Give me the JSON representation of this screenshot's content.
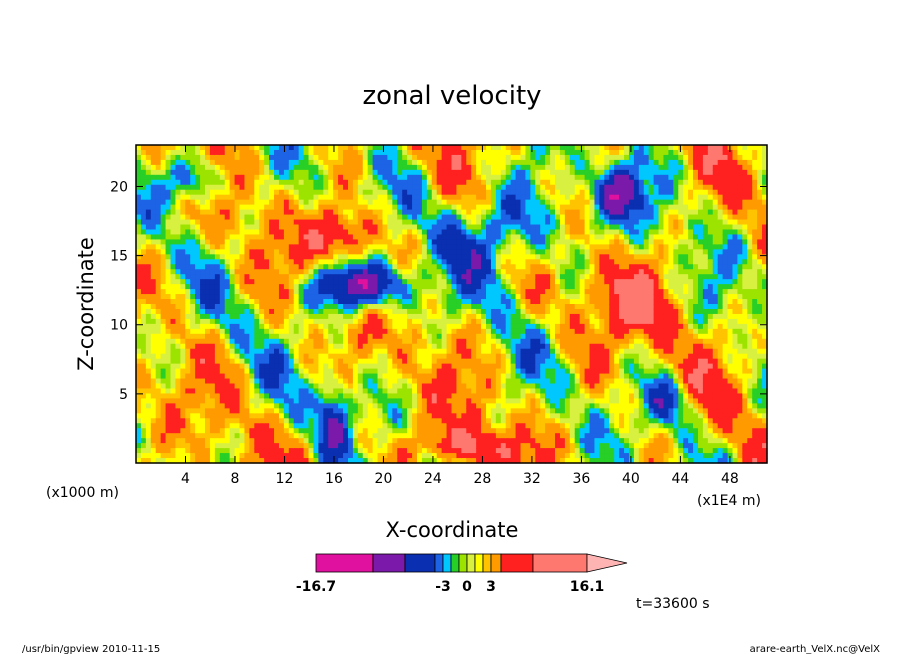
{
  "chart_data": {
    "type": "heatmap",
    "title": "zonal velocity",
    "xlabel": "X-coordinate",
    "ylabel": "Z-coordinate",
    "x_unit_left": "(x1000 m)",
    "x_unit_right": "(x1E4 m)",
    "xlim": [
      0,
      51
    ],
    "ylim": [
      0,
      23
    ],
    "x_ticks": [
      4,
      8,
      12,
      16,
      20,
      24,
      28,
      32,
      36,
      40,
      44,
      48
    ],
    "y_ticks": [
      5,
      10,
      15,
      20
    ],
    "colorbar": {
      "tick_labels": [
        "-16.7",
        "-3",
        "0",
        "3",
        "16.1"
      ],
      "tick_values": [
        -16.7,
        -3,
        0,
        3,
        16.1
      ],
      "levels": [
        -16.7,
        -12,
        -8,
        -5,
        -3,
        -2,
        -1,
        0,
        1,
        2,
        3,
        5,
        8,
        12,
        16.1
      ],
      "colors": [
        "#e0119e",
        "#7b1aaa",
        "#0a2fb0",
        "#1c63e6",
        "#00c8ff",
        "#27cf27",
        "#9de300",
        "#d8f040",
        "#ffff00",
        "#ffc300",
        "#ff9a00",
        "#ff2020",
        "#ff7870"
      ],
      "extend_color": "#ffb4b4"
    },
    "annotation": "t=33600 s"
  },
  "footer": {
    "left": "/usr/bin/gpview  2010-11-15",
    "right": "arare-earth_VelX.nc@VelX"
  }
}
